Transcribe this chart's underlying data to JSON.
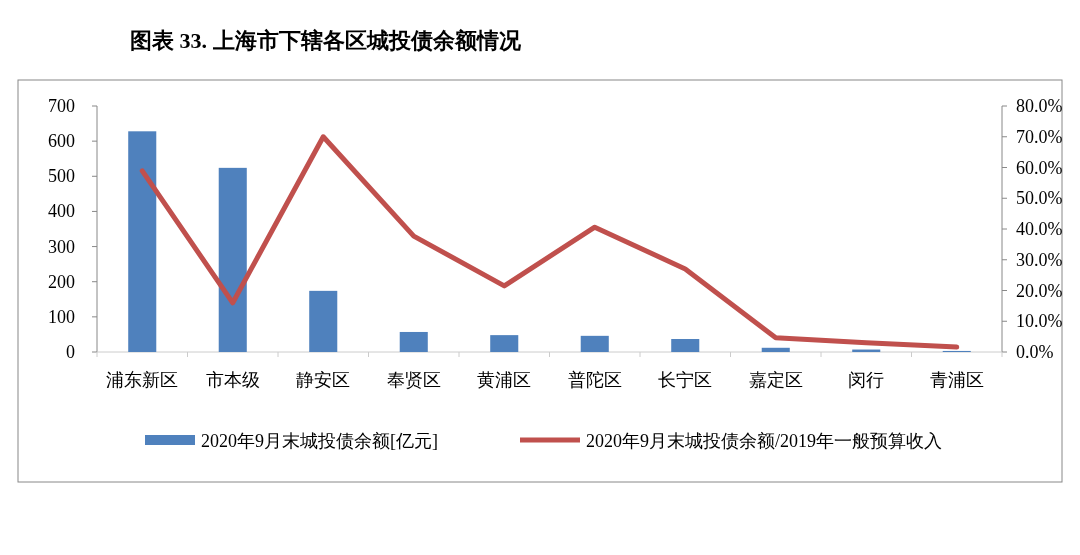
{
  "chart_data": {
    "type": "bar",
    "title": "图表 33. 上海市下辖各区城投债余额情况",
    "categories": [
      "浦东新区",
      "市本级",
      "静安区",
      "奉贤区",
      "黄浦区",
      "普陀区",
      "长宁区",
      "嘉定区",
      "闵行",
      "青浦区"
    ],
    "series": [
      {
        "name": "2020年9月末城投债余额[亿元]",
        "color": "#4f81bd",
        "values": [
          628,
          524,
          174,
          57,
          48,
          46,
          37,
          12,
          7,
          3
        ]
      },
      {
        "name": "2020年9月末城投债余额/2019年一般预算收入",
        "type": "line",
        "axis": "y2",
        "color": "#c0504d",
        "values": [
          58.9,
          16.0,
          70.0,
          37.7,
          21.5,
          40.6,
          27.0,
          4.6,
          3.0,
          1.6
        ]
      }
    ],
    "ylim": [
      0,
      700
    ],
    "yticks": [
      0,
      100,
      200,
      300,
      400,
      500,
      600,
      700
    ],
    "y2lim": [
      0,
      80
    ],
    "y2ticks": [
      {
        "value": 0,
        "label": "0.0%"
      },
      {
        "value": 10,
        "label": "10.0%"
      },
      {
        "value": 20,
        "label": "20.0%"
      },
      {
        "value": 30,
        "label": "30.0%"
      },
      {
        "value": 40,
        "label": "40.0%"
      },
      {
        "value": 50,
        "label": "50.0%"
      },
      {
        "value": 60,
        "label": "60.0%"
      },
      {
        "value": 70,
        "label": "70.0%"
      },
      {
        "value": 80,
        "label": "80.0%"
      }
    ],
    "legend": "bottom",
    "marker": "none"
  }
}
